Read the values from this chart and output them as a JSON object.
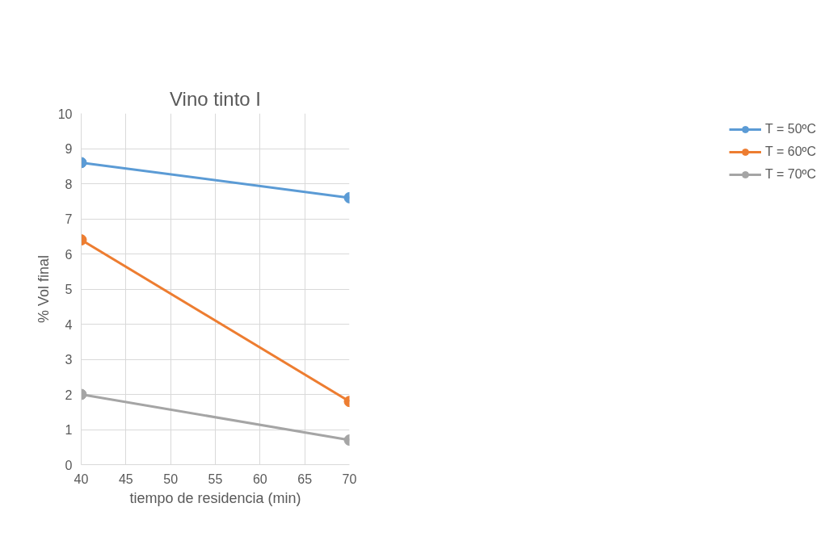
{
  "chart_data": {
    "type": "line",
    "title": "Vino tinto I",
    "xlabel": "tiempo de residencia (min)",
    "ylabel": "% Vol final",
    "x": [
      40,
      70
    ],
    "series": [
      {
        "name": "T = 50ºC",
        "color": "#5b9bd5",
        "values": [
          8.6,
          7.6
        ]
      },
      {
        "name": "T = 60ºC",
        "color": "#ed7d31",
        "values": [
          6.4,
          1.8
        ]
      },
      {
        "name": "T = 70ºC",
        "color": "#a5a5a5",
        "values": [
          2.0,
          0.7
        ]
      }
    ],
    "xlim": [
      40,
      70
    ],
    "xticks": [
      40,
      45,
      50,
      55,
      60,
      65,
      70
    ],
    "ylim": [
      0,
      10
    ],
    "yticks": [
      0,
      1,
      2,
      3,
      4,
      5,
      6,
      7,
      8,
      9,
      10
    ],
    "grid": true,
    "legend": "right",
    "marker": "circle",
    "line_style": "solid"
  }
}
